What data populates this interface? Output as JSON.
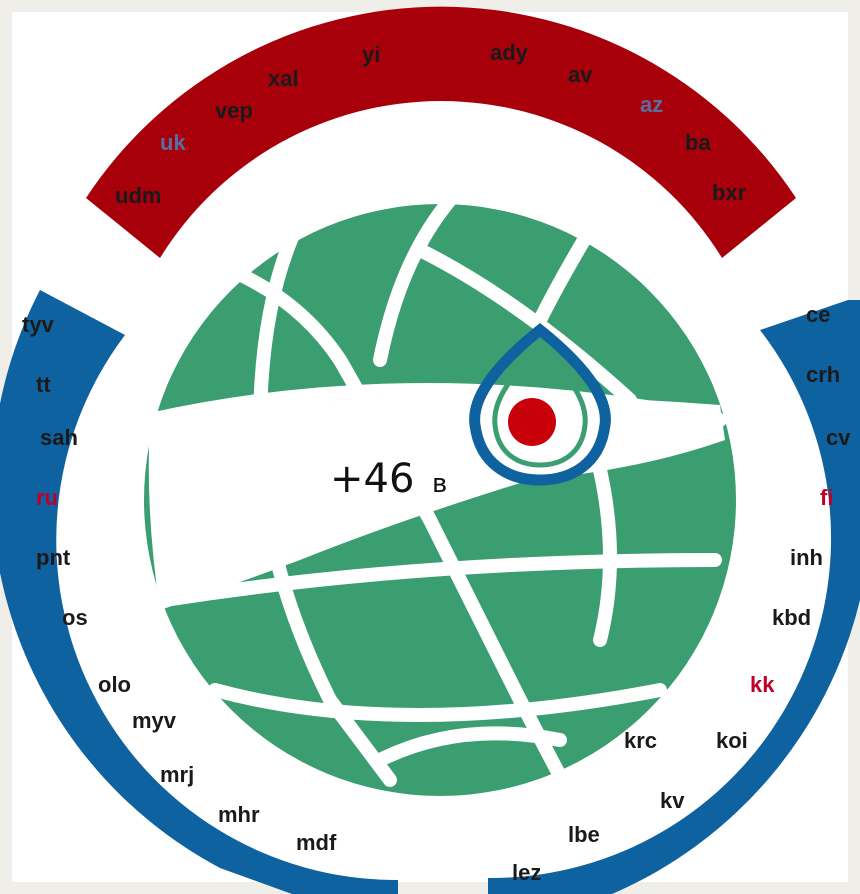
{
  "colors": {
    "top_band": "#a8000b",
    "side_band": "#0f62a0",
    "globe": "#3a9e70",
    "background": "#ffffff",
    "drop_ring": "#0f62a0",
    "drop_dot": "#c8000a",
    "label_default": "#1a1a1a",
    "label_highlight": "#c0002a",
    "label_top_highlight": "#5a6da0"
  },
  "center": {
    "value": "+46",
    "unit": "в"
  },
  "top_labels": [
    {
      "text": "udm",
      "highlight": false
    },
    {
      "text": "uk",
      "highlight": true
    },
    {
      "text": "vep",
      "highlight": false
    },
    {
      "text": "xal",
      "highlight": false
    },
    {
      "text": "yi",
      "highlight": false
    },
    {
      "text": "ady",
      "highlight": false
    },
    {
      "text": "av",
      "highlight": false
    },
    {
      "text": "az",
      "highlight": true
    },
    {
      "text": "ba",
      "highlight": false
    },
    {
      "text": "bxr",
      "highlight": false
    }
  ],
  "left_labels": [
    {
      "text": "tyv",
      "highlight": false
    },
    {
      "text": "tt",
      "highlight": false
    },
    {
      "text": "sah",
      "highlight": false
    },
    {
      "text": "ru",
      "highlight": true
    },
    {
      "text": "pnt",
      "highlight": false
    },
    {
      "text": "os",
      "highlight": false
    },
    {
      "text": "olo",
      "highlight": false
    },
    {
      "text": "myv",
      "highlight": false
    },
    {
      "text": "mrj",
      "highlight": false
    },
    {
      "text": "mhr",
      "highlight": false
    },
    {
      "text": "mdf",
      "highlight": false
    }
  ],
  "right_labels": [
    {
      "text": "ce",
      "highlight": false
    },
    {
      "text": "crh",
      "highlight": false
    },
    {
      "text": "cv",
      "highlight": false
    },
    {
      "text": "fi",
      "highlight": true
    },
    {
      "text": "inh",
      "highlight": false
    },
    {
      "text": "kbd",
      "highlight": false
    },
    {
      "text": "kk",
      "highlight": true
    },
    {
      "text": "koi",
      "highlight": false
    },
    {
      "text": "krc",
      "highlight": false
    },
    {
      "text": "kv",
      "highlight": false
    },
    {
      "text": "lbe",
      "highlight": false
    },
    {
      "text": "lez",
      "highlight": false
    }
  ]
}
